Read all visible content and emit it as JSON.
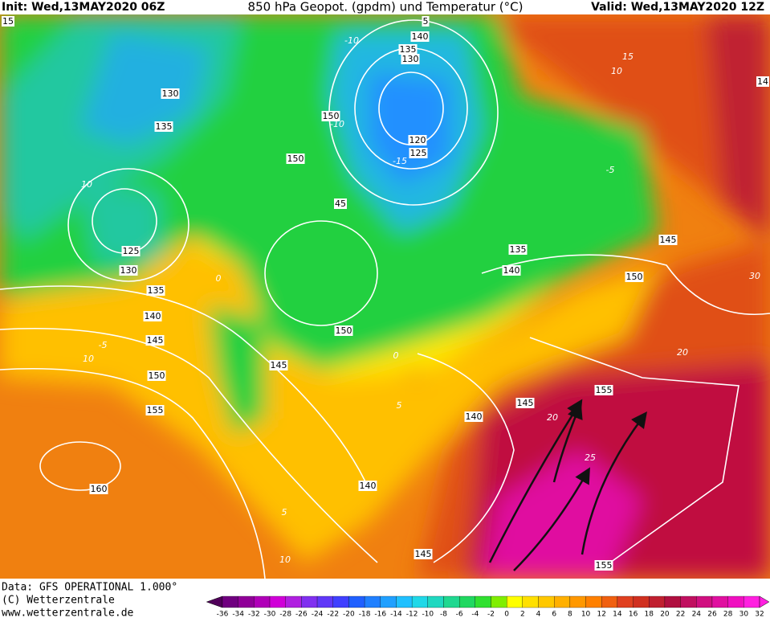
{
  "header": {
    "init": "Init: Wed,13MAY2020 06Z",
    "title": "850 hPa Geopot. (gpdm) und Temperatur (°C)",
    "valid": "Valid: Wed,13MAY2020 12Z"
  },
  "footer": {
    "data": "Data: GFS OPERATIONAL 1.000°",
    "copyright": "(C) Wetterzentrale",
    "url": "www.wetterzentrale.de"
  },
  "colorbar": {
    "labels": [
      "-36",
      "-34",
      "-32",
      "-30",
      "-28",
      "-26",
      "-24",
      "-22",
      "-20",
      "-18",
      "-16",
      "-14",
      "-12",
      "-10",
      "-8",
      "-6",
      "-4",
      "-2",
      "0",
      "2",
      "4",
      "6",
      "8",
      "10",
      "12",
      "14",
      "16",
      "18",
      "20",
      "22",
      "24",
      "26",
      "28",
      "30",
      "32"
    ],
    "colors": [
      "#50005a",
      "#700080",
      "#900098",
      "#b000b8",
      "#d000d8",
      "#b020e0",
      "#8030f0",
      "#6038f8",
      "#4040ff",
      "#2060ff",
      "#2080ff",
      "#20a0ff",
      "#20c0ff",
      "#20d8e8",
      "#20d8c0",
      "#20d890",
      "#20d860",
      "#30e030",
      "#80ee00",
      "#ffff00",
      "#ffe000",
      "#ffc800",
      "#ffb000",
      "#ff9800",
      "#ff8000",
      "#f06010",
      "#e04020",
      "#d03020",
      "#c02030",
      "#b01040",
      "#c01060",
      "#d01080",
      "#e010a0",
      "#f010c0",
      "#ff20e0"
    ]
  },
  "geopotential_labels": [
    "15",
    "130",
    "135",
    "150",
    "150",
    "45",
    "125",
    "130",
    "135",
    "140",
    "145",
    "150",
    "155",
    "160",
    "150",
    "145",
    "140",
    "145",
    "140",
    "145",
    "155",
    "155",
    "140",
    "135",
    "150",
    "145",
    "5",
    "140",
    "135",
    "130",
    "120",
    "125",
    "14"
  ],
  "isotherm_labels": [
    "-10",
    "15",
    "10",
    "-5",
    "-10",
    "-15",
    "10",
    "0",
    "-5",
    "10",
    "0",
    "5",
    "20",
    "25",
    "20",
    "30",
    "5",
    "10"
  ]
}
